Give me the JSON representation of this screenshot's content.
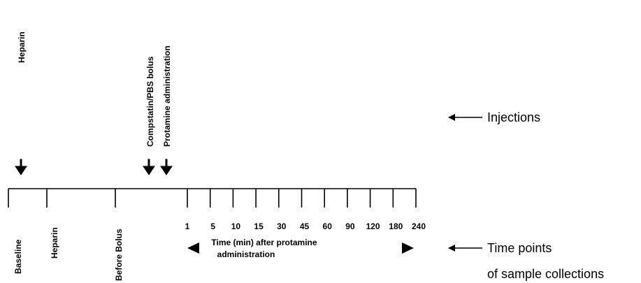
{
  "injections": {
    "labels": [
      "Heparin",
      "Compstatin/PBS bolus",
      "Protamine administration"
    ]
  },
  "samples": {
    "labels": [
      "Baseline",
      "Heparin",
      "Before Bolus"
    ],
    "times": [
      "1",
      "5",
      "10",
      "15",
      "30",
      "45",
      "60",
      "90",
      "120",
      "180",
      "240"
    ],
    "caption": [
      "Time (min) after protamine",
      "administration"
    ]
  },
  "legend": {
    "injections": "Injections",
    "samples": [
      "Time points",
      "of sample collections"
    ]
  }
}
